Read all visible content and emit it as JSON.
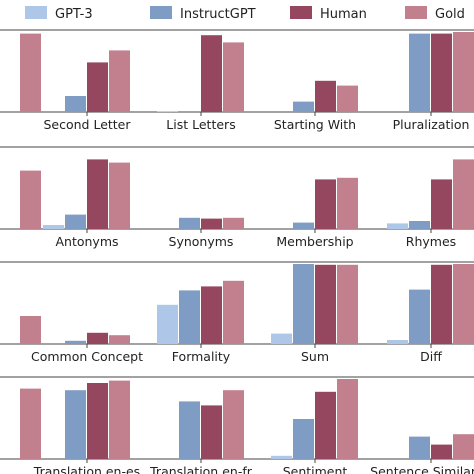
{
  "chart_data": {
    "type": "bar",
    "legend": {
      "placement": "top",
      "entries": [
        {
          "name": "GPT-3",
          "color": "#aec7e8"
        },
        {
          "name": "InstructGPT",
          "color": "#7f9cc4"
        },
        {
          "name": "Human",
          "color": "#94475f"
        },
        {
          "name": "Gold",
          "color": "#c2808f"
        }
      ]
    },
    "ylim": [
      0,
      1
    ],
    "grid": false,
    "panels": [
      {
        "categories": [
          "",
          "Second Letter",
          "List Letters",
          "Starting With",
          "Pluralization"
        ],
        "series": [
          {
            "name": "GPT-3",
            "values": [
              0,
              0,
              0.01,
              0,
              0
            ]
          },
          {
            "name": "InstructGPT",
            "values": [
              0,
              0.2,
              0,
              0.13,
              0.98
            ]
          },
          {
            "name": "Human",
            "values": [
              0,
              0.62,
              0.96,
              0.39,
              0.98
            ]
          },
          {
            "name": "Gold",
            "values": [
              0.98,
              0.77,
              0.87,
              0.33,
              1.0
            ]
          }
        ]
      },
      {
        "categories": [
          "",
          "Antonyms",
          "Synonyms",
          "Membership",
          "Rhymes"
        ],
        "series": [
          {
            "name": "GPT-3",
            "values": [
              0,
              0.05,
              0,
              0,
              0.07
            ]
          },
          {
            "name": "InstructGPT",
            "values": [
              0,
              0.18,
              0.14,
              0.08,
              0.1
            ]
          },
          {
            "name": "Human",
            "values": [
              0,
              0.87,
              0.13,
              0.62,
              0.62
            ]
          },
          {
            "name": "Gold",
            "values": [
              0.73,
              0.83,
              0.14,
              0.64,
              0.87
            ]
          }
        ]
      },
      {
        "categories": [
          "",
          "Common Concept",
          "Formality",
          "Sum",
          "Diff"
        ],
        "series": [
          {
            "name": "GPT-3",
            "values": [
              0,
              0,
              0.49,
              0.13,
              0.05
            ]
          },
          {
            "name": "InstructGPT",
            "values": [
              0,
              0.04,
              0.67,
              1.0,
              0.68
            ]
          },
          {
            "name": "Human",
            "values": [
              0,
              0.14,
              0.72,
              0.99,
              0.99
            ]
          },
          {
            "name": "Gold",
            "values": [
              0.35,
              0.11,
              0.79,
              0.99,
              1.0
            ]
          }
        ]
      },
      {
        "categories": [
          "",
          "Translation en-es",
          "Translation en-fr",
          "Sentiment",
          "Sentence Similarity"
        ],
        "series": [
          {
            "name": "GPT-3",
            "values": [
              0,
              0,
              0,
              0.04,
              0
            ]
          },
          {
            "name": "InstructGPT",
            "values": [
              0,
              0.86,
              0.72,
              0.5,
              0.28
            ]
          },
          {
            "name": "Human",
            "values": [
              0,
              0.95,
              0.67,
              0.84,
              0.18
            ]
          },
          {
            "name": "Gold",
            "values": [
              0.88,
              0.98,
              0.86,
              1.0,
              0.31
            ]
          }
        ]
      }
    ]
  }
}
